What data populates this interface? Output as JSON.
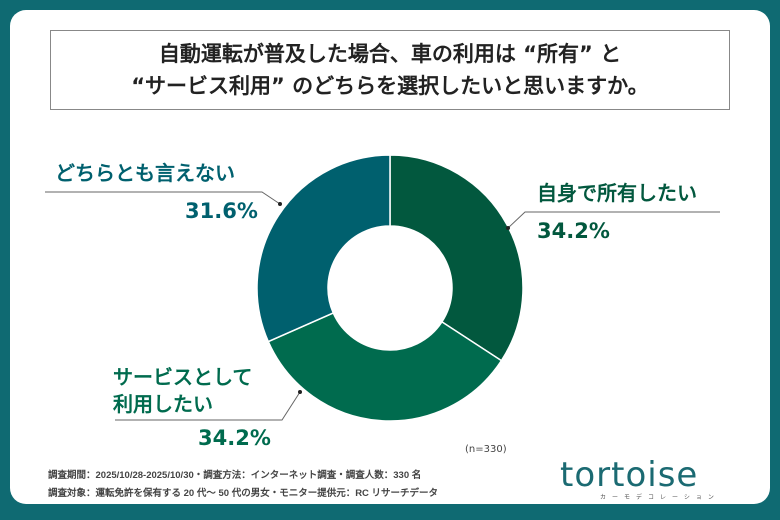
{
  "title": {
    "line1": "自動運転が普及した場合、車の利用は “所有” と",
    "line2": "“サービス利用” のどちらを選択したいと思いますか。"
  },
  "chart_data": {
    "type": "pie",
    "donut": true,
    "categories": [
      "自身で所有したい",
      "サービスとして利用したい",
      "どちらとも言えない"
    ],
    "values": [
      34.2,
      34.2,
      31.6
    ],
    "labels": [
      "34.2%",
      "34.2%",
      "31.6%"
    ],
    "colors": [
      "#02583e",
      "#006b4e",
      "#00606e"
    ],
    "sample": "(n=330)"
  },
  "labels": {
    "own": "自身で所有したい",
    "service_1": "サービスとして",
    "service_2": "利用したい",
    "neither": "どちらとも言えない"
  },
  "footer": {
    "line1": "調査期間：2025/10/28-2025/10/30・調査方法：インターネット調査・調査人数：330 名",
    "line2": "調査対象：運転免許を保有する 20 代～ 50 代の男女・モニター提供元：RC リサーチデータ"
  },
  "logo": {
    "text": "tortoise",
    "sub": "カーモデコレーション"
  }
}
